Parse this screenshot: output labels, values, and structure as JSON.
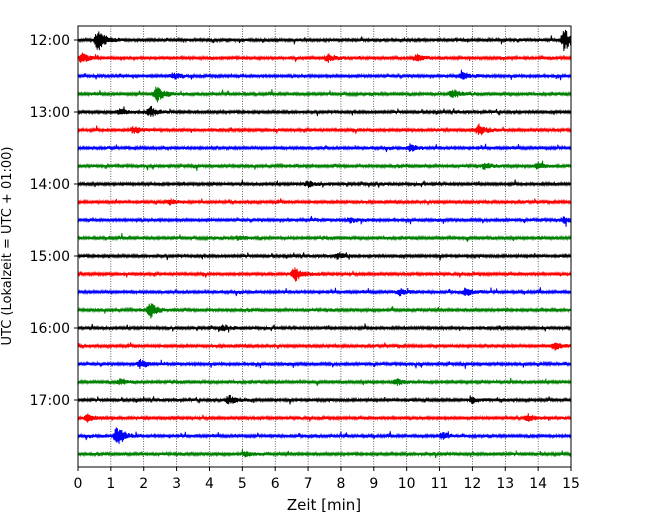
{
  "chart_data": {
    "type": "line",
    "xlabel": "Zeit  [min]",
    "ylabel": "UTC (Lokalzeit = UTC + 01:00)",
    "xlim": [
      0,
      15
    ],
    "x_ticks": [
      "0",
      "1",
      "2",
      "3",
      "4",
      "5",
      "6",
      "7",
      "8",
      "9",
      "10",
      "11",
      "12",
      "13",
      "14",
      "15"
    ],
    "y_tick_labels": [
      "12:00",
      "13:00",
      "14:00",
      "15:00",
      "16:00",
      "17:00"
    ],
    "grid": "vertical-dotted",
    "trace_colors": [
      "#000000",
      "#ff0000",
      "#0000ff",
      "#008000"
    ],
    "traces": [
      {
        "start": "12:00",
        "color": "#000000",
        "events": [
          {
            "t": 0.6,
            "amp": 1.0
          },
          {
            "t": 14.8,
            "amp": 1.0
          }
        ]
      },
      {
        "start": "12:15",
        "color": "#ff0000",
        "events": [
          {
            "t": 0.1,
            "amp": 0.5
          },
          {
            "t": 7.6,
            "amp": 0.35
          },
          {
            "t": 10.3,
            "amp": 0.3
          }
        ]
      },
      {
        "start": "12:30",
        "color": "#0000ff",
        "events": [
          {
            "t": 2.9,
            "amp": 0.3
          },
          {
            "t": 11.7,
            "amp": 0.3
          }
        ]
      },
      {
        "start": "12:45",
        "color": "#008000",
        "events": [
          {
            "t": 2.4,
            "amp": 0.7
          },
          {
            "t": 11.4,
            "amp": 0.4
          }
        ]
      },
      {
        "start": "13:00",
        "color": "#000000",
        "events": [
          {
            "t": 2.2,
            "amp": 0.5
          },
          {
            "t": 1.3,
            "amp": 0.3
          }
        ]
      },
      {
        "start": "13:15",
        "color": "#ff0000",
        "events": [
          {
            "t": 12.2,
            "amp": 0.55
          },
          {
            "t": 1.7,
            "amp": 0.3
          }
        ]
      },
      {
        "start": "13:30",
        "color": "#0000ff",
        "events": [
          {
            "t": 10.1,
            "amp": 0.3
          }
        ]
      },
      {
        "start": "13:45",
        "color": "#008000",
        "events": [
          {
            "t": 12.4,
            "amp": 0.3
          },
          {
            "t": 14.0,
            "amp": 0.3
          }
        ]
      },
      {
        "start": "14:00",
        "color": "#000000",
        "events": [
          {
            "t": 7.0,
            "amp": 0.25
          }
        ]
      },
      {
        "start": "14:15",
        "color": "#ff0000",
        "events": [
          {
            "t": 2.8,
            "amp": 0.25
          }
        ]
      },
      {
        "start": "14:30",
        "color": "#0000ff",
        "events": [
          {
            "t": 14.8,
            "amp": 0.3
          },
          {
            "t": 8.3,
            "amp": 0.25
          }
        ]
      },
      {
        "start": "14:45",
        "color": "#008000",
        "events": [
          {
            "t": 4.9,
            "amp": 0.25
          }
        ]
      },
      {
        "start": "15:00",
        "color": "#000000",
        "events": [
          {
            "t": 7.9,
            "amp": 0.25
          }
        ]
      },
      {
        "start": "15:15",
        "color": "#ff0000",
        "events": [
          {
            "t": 6.6,
            "amp": 0.65
          }
        ]
      },
      {
        "start": "15:30",
        "color": "#0000ff",
        "events": [
          {
            "t": 11.8,
            "amp": 0.35
          },
          {
            "t": 9.8,
            "amp": 0.3
          }
        ]
      },
      {
        "start": "15:45",
        "color": "#008000",
        "events": [
          {
            "t": 2.2,
            "amp": 0.7
          }
        ]
      },
      {
        "start": "16:00",
        "color": "#000000",
        "events": [
          {
            "t": 4.4,
            "amp": 0.25
          }
        ]
      },
      {
        "start": "16:15",
        "color": "#ff0000",
        "events": [
          {
            "t": 14.5,
            "amp": 0.35
          }
        ]
      },
      {
        "start": "16:30",
        "color": "#0000ff",
        "events": [
          {
            "t": 1.9,
            "amp": 0.35
          }
        ]
      },
      {
        "start": "16:45",
        "color": "#008000",
        "events": [
          {
            "t": 1.3,
            "amp": 0.3
          },
          {
            "t": 9.7,
            "amp": 0.3
          }
        ]
      },
      {
        "start": "17:00",
        "color": "#000000",
        "events": [
          {
            "t": 4.6,
            "amp": 0.4
          },
          {
            "t": 12.0,
            "amp": 0.25
          }
        ]
      },
      {
        "start": "17:15",
        "color": "#ff0000",
        "events": [
          {
            "t": 0.3,
            "amp": 0.35
          },
          {
            "t": 13.7,
            "amp": 0.3
          }
        ]
      },
      {
        "start": "17:30",
        "color": "#0000ff",
        "events": [
          {
            "t": 1.2,
            "amp": 0.95
          },
          {
            "t": 11.1,
            "amp": 0.3
          }
        ]
      },
      {
        "start": "17:45",
        "color": "#008000",
        "events": [
          {
            "t": 5.1,
            "amp": 0.25
          }
        ]
      }
    ]
  }
}
